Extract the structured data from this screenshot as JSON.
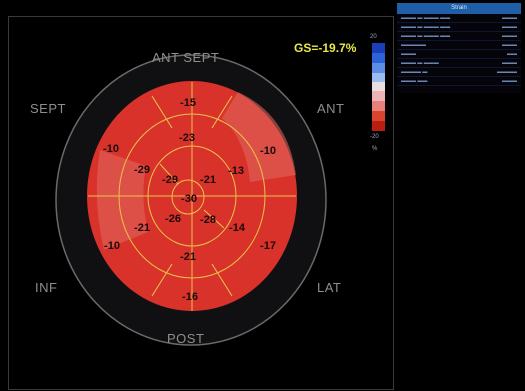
{
  "global_strain": "GS=-19.7%",
  "wall_labels": {
    "ant_sept": "ANT SEPT",
    "sept": "SEPT",
    "ant": "ANT",
    "inf": "INF",
    "lat": "LAT",
    "post": "POST"
  },
  "scale": {
    "max_label": "20",
    "min_label": "-20",
    "unit": "%",
    "colors": [
      "#1a3fb8",
      "#2d63d8",
      "#5d8ee6",
      "#9bbcf0",
      "#e8dede",
      "#f0b3b3",
      "#e8817a",
      "#d9442e",
      "#b81e12"
    ]
  },
  "segments": {
    "basal": [
      "-15",
      "-10",
      "-17",
      "-16",
      "-10",
      "-10"
    ],
    "mid": [
      "-23",
      "-13",
      "-14",
      "-21",
      "-21",
      "-29"
    ],
    "apical": [
      "-21",
      "-28",
      "-26",
      "-29"
    ],
    "apex": "-30"
  },
  "panel": {
    "header": "Strain",
    "rows": [
      "",
      "",
      "",
      "",
      "",
      "",
      "",
      "",
      ""
    ]
  },
  "colors": {
    "segment_fill": "#d8322a",
    "segment_light": "#e06a5e",
    "grid_line": "#e8c44a"
  }
}
